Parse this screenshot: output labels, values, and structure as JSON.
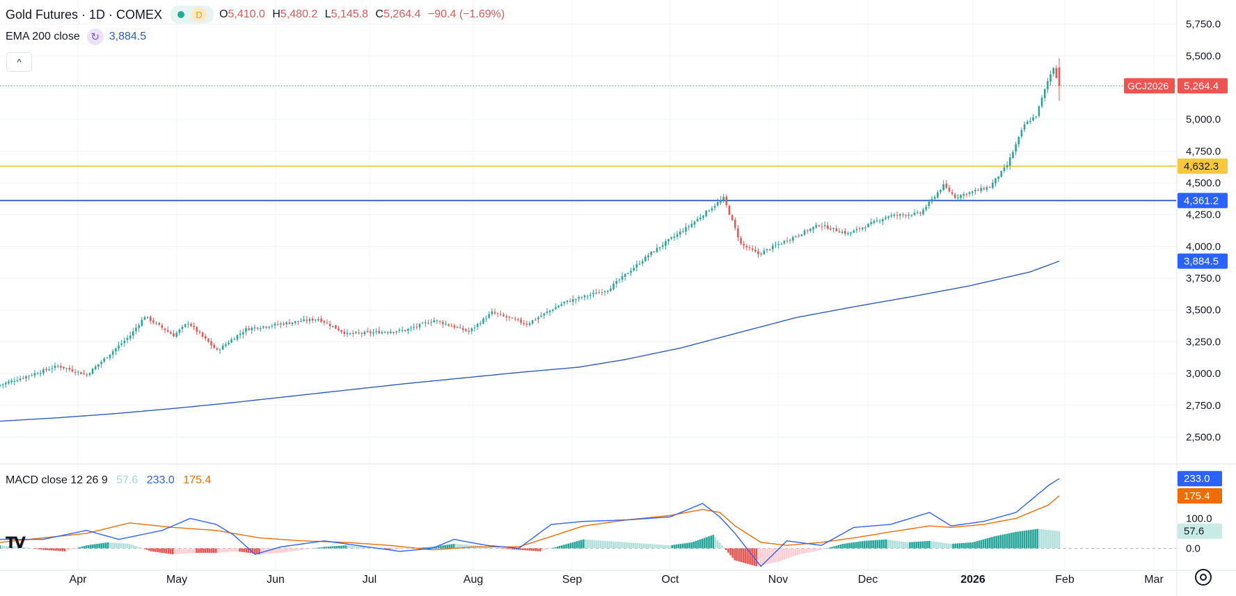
{
  "legend": {
    "symbol": "Gold Futures · 1D · COMEX",
    "status_letter": "D",
    "ohlc": [
      {
        "key": "O",
        "value": "5,410.0"
      },
      {
        "key": "H",
        "value": "5,480.2"
      },
      {
        "key": "L",
        "value": "5,145.8"
      },
      {
        "key": "C",
        "value": "5,264.4"
      }
    ],
    "change": "−90.4 (−1.69%)"
  },
  "indicators": {
    "ema": {
      "label": "EMA 200 close",
      "value": "3,884.5"
    },
    "macd": {
      "label": "MACD close 12 26 9",
      "hist_value": "57.6",
      "macd_value": "233.0",
      "signal_value": "175.4"
    }
  },
  "controls": {
    "collapse_icon": "^",
    "logo_text": "TV"
  },
  "colors": {
    "up": "#26a69a",
    "down": "#ef5350",
    "ema": "#2b5bbd",
    "macd": "#2962ff",
    "signal": "#ef6c00",
    "hist_up": "#26a69a",
    "hist_up_light": "#b2dfdb",
    "hist_down": "#ef5350",
    "hist_down_light": "#ffcdd2",
    "level_gold": "#f7c83b",
    "level_blue": "#1e4fc4"
  },
  "chart_data": [
    {
      "type": "candlestick",
      "title": "Gold Futures · 1D · COMEX",
      "x_tick_labels": [
        "Apr",
        "May",
        "Jun",
        "Jul",
        "Aug",
        "Sep",
        "Oct",
        "Nov",
        "Dec",
        "2026",
        "Feb",
        "Mar"
      ],
      "y_tick_labels": [
        "5,750.0",
        "5,500.0",
        "5,000.0",
        "4,750.0",
        "4,500.0",
        "4,250.0",
        "4,000.0",
        "3,750.0",
        "3,500.0",
        "3,250.0",
        "3,000.0",
        "2,750.0",
        "2,500.0"
      ],
      "y_ticks": [
        5750,
        5500,
        5000,
        4750,
        4500,
        4250,
        4000,
        3750,
        3500,
        3250,
        3000,
        2750,
        2500
      ],
      "ylim": [
        2300,
        5830
      ],
      "price_badges": [
        {
          "label": "5,264.4",
          "value": 5264.4,
          "tag": "GCJ2026",
          "color": "#ef5350"
        },
        {
          "label": "4,632.3",
          "value": 4632.3,
          "color": "#f7c83b"
        },
        {
          "label": "4,361.2",
          "value": 4361.2,
          "color": "#2962ff"
        },
        {
          "label": "3,884.5",
          "value": 3884.5,
          "color": "#2962ff"
        }
      ],
      "horizontal_levels": [
        {
          "value": 4632.3,
          "color": "#f7c83b"
        },
        {
          "value": 4361.2,
          "color": "#1e4fc4"
        }
      ],
      "last_price": 5264.4,
      "ema_200": [
        [
          0,
          2625
        ],
        [
          20,
          2652
        ],
        [
          40,
          2685
        ],
        [
          60,
          2725
        ],
        [
          80,
          2770
        ],
        [
          100,
          2820
        ],
        [
          120,
          2870
        ],
        [
          140,
          2920
        ],
        [
          160,
          2965
        ],
        [
          180,
          3010
        ],
        [
          200,
          3050
        ],
        [
          216,
          3110
        ],
        [
          235,
          3200
        ],
        [
          255,
          3320
        ],
        [
          275,
          3440
        ],
        [
          295,
          3525
        ],
        [
          315,
          3605
        ],
        [
          335,
          3690
        ],
        [
          356,
          3800
        ],
        [
          366,
          3884.5
        ]
      ],
      "key_closes": [
        [
          0,
          2910
        ],
        [
          20,
          3060
        ],
        [
          30,
          2990
        ],
        [
          45,
          3300
        ],
        [
          50,
          3450
        ],
        [
          60,
          3300
        ],
        [
          65,
          3400
        ],
        [
          75,
          3180
        ],
        [
          85,
          3350
        ],
        [
          100,
          3400
        ],
        [
          110,
          3430
        ],
        [
          120,
          3310
        ],
        [
          140,
          3340
        ],
        [
          150,
          3420
        ],
        [
          162,
          3330
        ],
        [
          170,
          3480
        ],
        [
          182,
          3390
        ],
        [
          195,
          3560
        ],
        [
          210,
          3660
        ],
        [
          225,
          3950
        ],
        [
          238,
          4160
        ],
        [
          250,
          4380
        ],
        [
          256,
          4020
        ],
        [
          262,
          3940
        ],
        [
          272,
          4050
        ],
        [
          283,
          4170
        ],
        [
          293,
          4100
        ],
        [
          307,
          4240
        ],
        [
          318,
          4260
        ],
        [
          326,
          4480
        ],
        [
          330,
          4390
        ],
        [
          342,
          4470
        ],
        [
          348,
          4640
        ],
        [
          354,
          4960
        ],
        [
          358,
          5030
        ],
        [
          362,
          5300
        ],
        [
          364,
          5410
        ],
        [
          366,
          5264.4
        ]
      ]
    },
    {
      "type": "macd",
      "title": "MACD close 12 26 9",
      "y_tick_labels": [
        "233.0",
        "175.4",
        "100.0",
        "57.6",
        "0.0"
      ],
      "y_ticks": [
        233.0,
        175.4,
        100.0,
        57.6,
        0.0
      ],
      "ylim": [
        -50,
        280
      ],
      "macd_line": [
        [
          0,
          30
        ],
        [
          20,
          30
        ],
        [
          40,
          60
        ],
        [
          55,
          30
        ],
        [
          75,
          60
        ],
        [
          88,
          100
        ],
        [
          100,
          80
        ],
        [
          108,
          45
        ],
        [
          118,
          -20
        ],
        [
          130,
          5
        ],
        [
          150,
          25
        ],
        [
          170,
          5
        ],
        [
          185,
          -10
        ],
        [
          200,
          0
        ],
        [
          210,
          30
        ],
        [
          225,
          10
        ],
        [
          240,
          0
        ],
        [
          255,
          80
        ],
        [
          270,
          90
        ],
        [
          290,
          95
        ],
        [
          310,
          105
        ],
        [
          325,
          150
        ],
        [
          333,
          105
        ],
        [
          340,
          50
        ],
        [
          352,
          -60
        ],
        [
          364,
          25
        ],
        [
          380,
          10
        ],
        [
          395,
          70
        ],
        [
          412,
          80
        ],
        [
          430,
          120
        ],
        [
          440,
          75
        ],
        [
          455,
          90
        ],
        [
          470,
          120
        ],
        [
          485,
          210
        ],
        [
          490,
          233
        ]
      ],
      "signal_line": [
        [
          0,
          20
        ],
        [
          20,
          35
        ],
        [
          40,
          50
        ],
        [
          60,
          85
        ],
        [
          80,
          70
        ],
        [
          100,
          60
        ],
        [
          120,
          35
        ],
        [
          140,
          25
        ],
        [
          160,
          20
        ],
        [
          180,
          10
        ],
        [
          200,
          -5
        ],
        [
          220,
          5
        ],
        [
          240,
          5
        ],
        [
          255,
          40
        ],
        [
          270,
          75
        ],
        [
          290,
          95
        ],
        [
          310,
          110
        ],
        [
          325,
          130
        ],
        [
          333,
          120
        ],
        [
          340,
          75
        ],
        [
          352,
          20
        ],
        [
          364,
          10
        ],
        [
          380,
          20
        ],
        [
          395,
          35
        ],
        [
          412,
          55
        ],
        [
          430,
          75
        ],
        [
          440,
          70
        ],
        [
          455,
          80
        ],
        [
          470,
          100
        ],
        [
          485,
          145
        ],
        [
          490,
          175.4
        ]
      ],
      "histogram": [
        [
          0,
          10
        ],
        [
          10,
          5
        ],
        [
          20,
          -5
        ],
        [
          30,
          -10
        ],
        [
          40,
          10
        ],
        [
          50,
          20
        ],
        [
          60,
          15
        ],
        [
          70,
          -10
        ],
        [
          80,
          -20
        ],
        [
          90,
          -15
        ],
        [
          100,
          -15
        ],
        [
          110,
          -10
        ],
        [
          120,
          -20
        ],
        [
          130,
          -15
        ],
        [
          140,
          -5
        ],
        [
          150,
          5
        ],
        [
          160,
          10
        ],
        [
          170,
          5
        ],
        [
          180,
          -5
        ],
        [
          190,
          0
        ],
        [
          200,
          5
        ],
        [
          210,
          15
        ],
        [
          220,
          10
        ],
        [
          230,
          0
        ],
        [
          240,
          -5
        ],
        [
          250,
          -10
        ],
        [
          260,
          10
        ],
        [
          270,
          30
        ],
        [
          280,
          25
        ],
        [
          290,
          20
        ],
        [
          300,
          15
        ],
        [
          310,
          10
        ],
        [
          320,
          20
        ],
        [
          330,
          45
        ],
        [
          340,
          -40
        ],
        [
          350,
          -60
        ],
        [
          360,
          -45
        ],
        [
          370,
          -20
        ],
        [
          380,
          -5
        ],
        [
          390,
          15
        ],
        [
          400,
          25
        ],
        [
          410,
          30
        ],
        [
          420,
          20
        ],
        [
          430,
          25
        ],
        [
          440,
          15
        ],
        [
          450,
          20
        ],
        [
          460,
          40
        ],
        [
          470,
          55
        ],
        [
          480,
          65
        ],
        [
          490,
          57.6
        ]
      ]
    }
  ]
}
